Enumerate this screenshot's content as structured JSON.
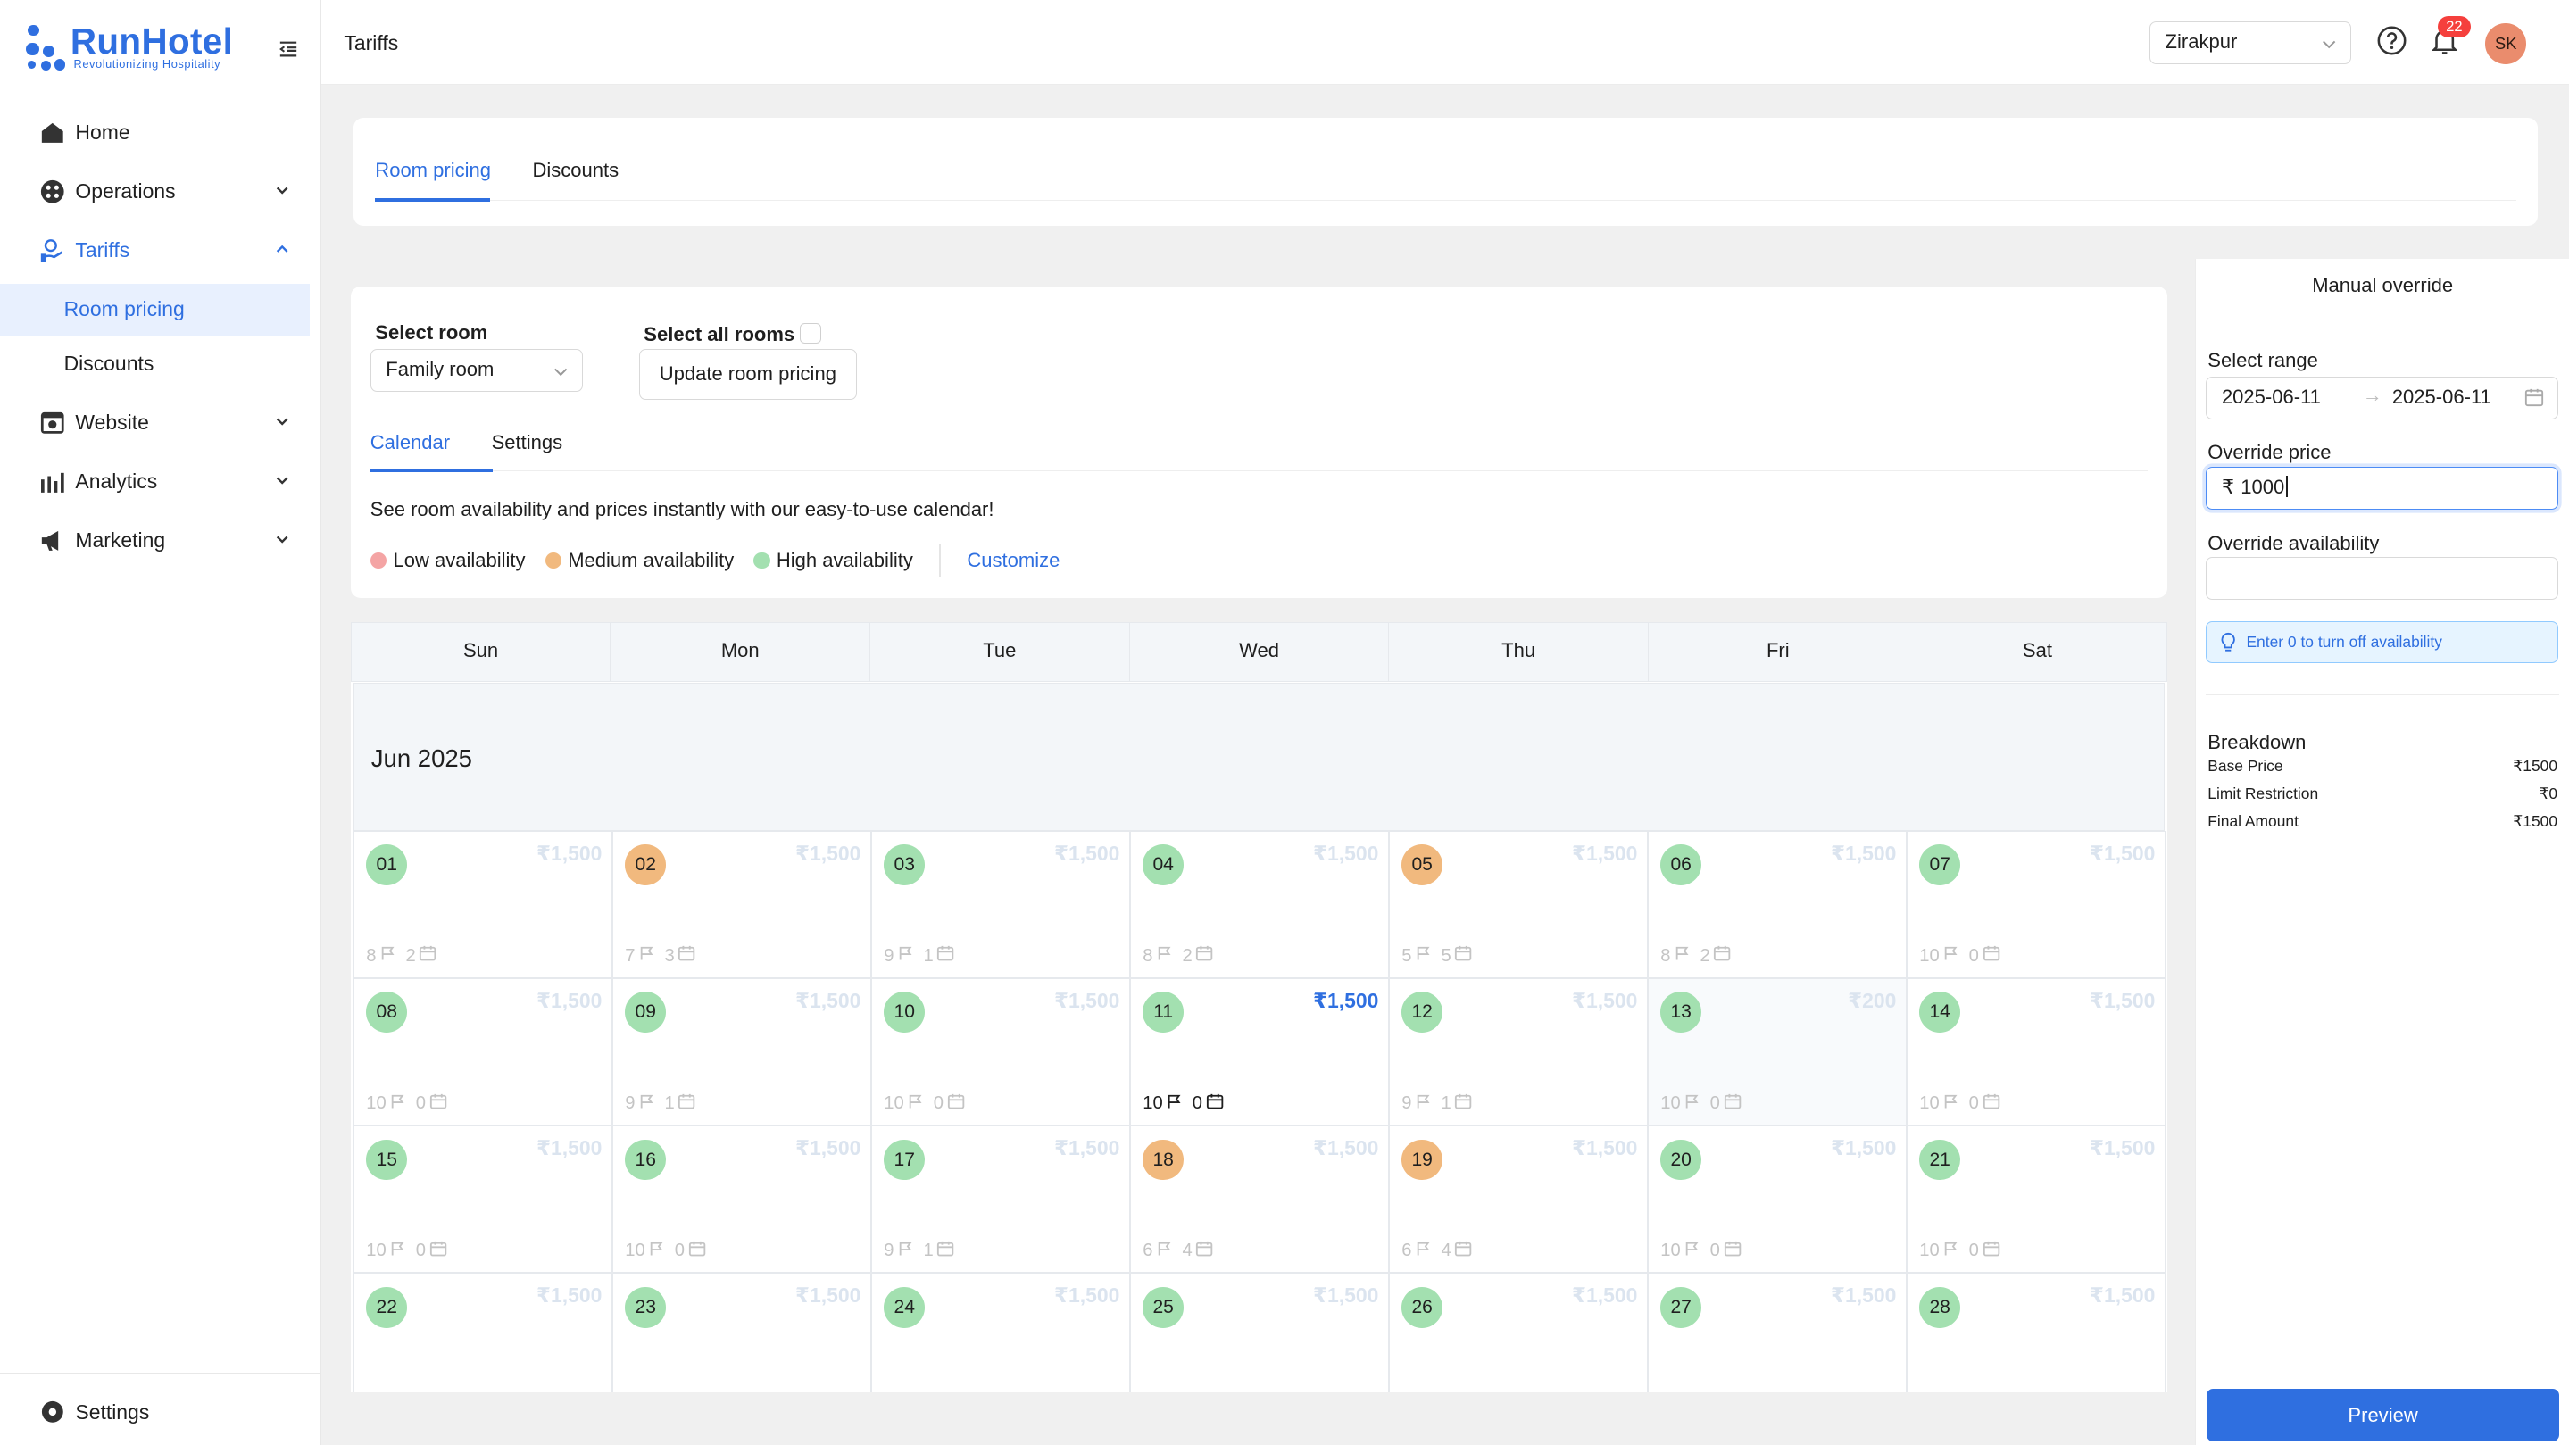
{
  "app": {
    "brand": "RunHotel",
    "tagline": "Revolutionizing Hospitality",
    "brand_color": "#2f6fe0"
  },
  "sidebar": {
    "items": [
      {
        "label": "Home",
        "icon": "home-icon"
      },
      {
        "label": "Operations",
        "icon": "operations-icon",
        "expandable": true
      },
      {
        "label": "Tariffs",
        "icon": "tariffs-icon",
        "expandable": true,
        "expanded": true,
        "active": true
      },
      {
        "label": "Website",
        "icon": "website-icon",
        "expandable": true
      },
      {
        "label": "Analytics",
        "icon": "analytics-icon",
        "expandable": true
      },
      {
        "label": "Marketing",
        "icon": "marketing-icon",
        "expandable": true
      }
    ],
    "sub_items": [
      {
        "label": "Room pricing",
        "active": true
      },
      {
        "label": "Discounts"
      }
    ],
    "settings_label": "Settings"
  },
  "topbar": {
    "page_title": "Tariffs",
    "location": "Zirakpur",
    "notification_count": "22",
    "avatar_initials": "SK"
  },
  "tabs": [
    {
      "label": "Room pricing",
      "active": true
    },
    {
      "label": "Discounts"
    }
  ],
  "controls": {
    "select_room_label": "Select room",
    "room_value": "Family room",
    "select_all_label": "Select all rooms",
    "select_all_checked": false,
    "update_button": "Update room pricing",
    "subtabs": [
      {
        "label": "Calendar",
        "active": true
      },
      {
        "label": "Settings"
      }
    ],
    "info_text": "See room availability and prices instantly with our easy-to-use calendar!",
    "legend": [
      {
        "label": "Low availability",
        "color": "#f4a4a4"
      },
      {
        "label": "Medium availability",
        "color": "#f1b97e"
      },
      {
        "label": "High availability",
        "color": "#a3e0b0"
      }
    ],
    "customize_link": "Customize"
  },
  "calendar": {
    "weekdays": [
      "Sun",
      "Mon",
      "Tue",
      "Wed",
      "Thu",
      "Fri",
      "Sat"
    ],
    "month_label": "Jun 2025",
    "days": [
      {
        "day": "01",
        "price": "₹1,500",
        "rooms": "8",
        "booked": "2",
        "level": "high"
      },
      {
        "day": "02",
        "price": "₹1,500",
        "rooms": "7",
        "booked": "3",
        "level": "medium"
      },
      {
        "day": "03",
        "price": "₹1,500",
        "rooms": "9",
        "booked": "1",
        "level": "high"
      },
      {
        "day": "04",
        "price": "₹1,500",
        "rooms": "8",
        "booked": "2",
        "level": "high"
      },
      {
        "day": "05",
        "price": "₹1,500",
        "rooms": "5",
        "booked": "5",
        "level": "medium"
      },
      {
        "day": "06",
        "price": "₹1,500",
        "rooms": "8",
        "booked": "2",
        "level": "high"
      },
      {
        "day": "07",
        "price": "₹1,500",
        "rooms": "10",
        "booked": "0",
        "level": "high"
      },
      {
        "day": "08",
        "price": "₹1,500",
        "rooms": "10",
        "booked": "0",
        "level": "high"
      },
      {
        "day": "09",
        "price": "₹1,500",
        "rooms": "9",
        "booked": "1",
        "level": "high"
      },
      {
        "day": "10",
        "price": "₹1,500",
        "rooms": "10",
        "booked": "0",
        "level": "high"
      },
      {
        "day": "11",
        "price": "₹1,500",
        "rooms": "10",
        "booked": "0",
        "level": "high",
        "selected": true
      },
      {
        "day": "12",
        "price": "₹1,500",
        "rooms": "9",
        "booked": "1",
        "level": "high"
      },
      {
        "day": "13",
        "price": "₹200",
        "rooms": "10",
        "booked": "0",
        "level": "high",
        "shaded": true
      },
      {
        "day": "14",
        "price": "₹1,500",
        "rooms": "10",
        "booked": "0",
        "level": "high"
      },
      {
        "day": "15",
        "price": "₹1,500",
        "rooms": "10",
        "booked": "0",
        "level": "high"
      },
      {
        "day": "16",
        "price": "₹1,500",
        "rooms": "10",
        "booked": "0",
        "level": "high"
      },
      {
        "day": "17",
        "price": "₹1,500",
        "rooms": "9",
        "booked": "1",
        "level": "high"
      },
      {
        "day": "18",
        "price": "₹1,500",
        "rooms": "6",
        "booked": "4",
        "level": "medium"
      },
      {
        "day": "19",
        "price": "₹1,500",
        "rooms": "6",
        "booked": "4",
        "level": "medium"
      },
      {
        "day": "20",
        "price": "₹1,500",
        "rooms": "10",
        "booked": "0",
        "level": "high"
      },
      {
        "day": "21",
        "price": "₹1,500",
        "rooms": "10",
        "booked": "0",
        "level": "high"
      },
      {
        "day": "22",
        "price": "₹1,500",
        "rooms": "",
        "booked": "",
        "level": "high"
      },
      {
        "day": "23",
        "price": "₹1,500",
        "rooms": "",
        "booked": "",
        "level": "high"
      },
      {
        "day": "24",
        "price": "₹1,500",
        "rooms": "",
        "booked": "",
        "level": "high"
      },
      {
        "day": "25",
        "price": "₹1,500",
        "rooms": "",
        "booked": "",
        "level": "high"
      },
      {
        "day": "26",
        "price": "₹1,500",
        "rooms": "",
        "booked": "",
        "level": "high"
      },
      {
        "day": "27",
        "price": "₹1,500",
        "rooms": "",
        "booked": "",
        "level": "high"
      },
      {
        "day": "28",
        "price": "₹1,500",
        "rooms": "",
        "booked": "",
        "level": "high"
      }
    ],
    "level_colors": {
      "high": "#a3e0b0",
      "medium": "#f1b97e",
      "low": "#f4a4a4"
    }
  },
  "override": {
    "title": "Manual override",
    "range_label": "Select range",
    "range_start": "2025-06-11",
    "range_end": "2025-06-11",
    "price_label": "Override price",
    "price_currency": "₹",
    "price_value": "1000",
    "availability_label": "Override availability",
    "availability_value": "",
    "hint": "Enter 0 to turn off availability",
    "breakdown_title": "Breakdown",
    "breakdown": [
      {
        "label": "Base Price",
        "value": "₹1500"
      },
      {
        "label": "Limit Restriction",
        "value": "₹0"
      },
      {
        "label": "Final Amount",
        "value": "₹1500"
      }
    ],
    "preview_button": "Preview"
  }
}
